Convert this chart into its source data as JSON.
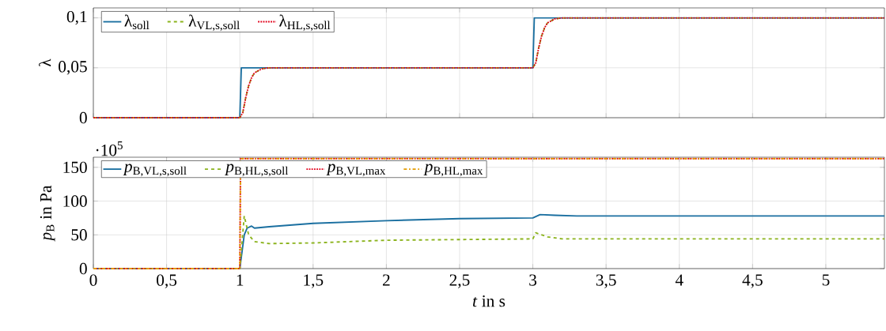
{
  "chart_data": [
    {
      "type": "line",
      "ylabel": "λ",
      "xlim": [
        0,
        5.4
      ],
      "ylim": [
        0,
        0.11
      ],
      "xticks": [
        0,
        0.5,
        1,
        1.5,
        2,
        2.5,
        3,
        3.5,
        4,
        4.5,
        5
      ],
      "yticks": [
        0,
        {
          "value": 0.05,
          "label": "0,05"
        },
        {
          "value": 0.1,
          "label": "0,1"
        }
      ],
      "tick_labels": "y",
      "grid": true,
      "legend": "top left",
      "marker": "none",
      "series": [
        {
          "name": "λ$_{soll}$",
          "color": "#1a6fa0",
          "line_style": "solid",
          "x": [
            0,
            1.0,
            1.01,
            3.0,
            3.01,
            5.4
          ],
          "values": [
            0,
            0,
            0.05,
            0.05,
            0.1,
            0.1
          ]
        },
        {
          "name": "λ$_{VL,s,soll}$",
          "color": "#8bb31d",
          "line_style": "dashed",
          "x": [
            0,
            1.0,
            1.02,
            1.04,
            1.06,
            1.08,
            1.1,
            1.15,
            1.2,
            3.0,
            3.02,
            3.04,
            3.06,
            3.08,
            3.1,
            3.15,
            3.2,
            5.4
          ],
          "values": [
            0,
            0,
            0.005,
            0.02,
            0.032,
            0.04,
            0.045,
            0.049,
            0.05,
            0.05,
            0.055,
            0.07,
            0.082,
            0.09,
            0.095,
            0.099,
            0.1,
            0.1
          ]
        },
        {
          "name": "λ$_{HL,s,soll}$",
          "color": "#e2001a",
          "line_style": "dotted",
          "x": [
            0,
            1.0,
            1.02,
            1.04,
            1.06,
            1.08,
            1.1,
            1.15,
            1.2,
            3.0,
            3.02,
            3.04,
            3.06,
            3.08,
            3.1,
            3.15,
            3.2,
            5.4
          ],
          "values": [
            0,
            0,
            0.005,
            0.02,
            0.032,
            0.04,
            0.045,
            0.049,
            0.05,
            0.05,
            0.055,
            0.07,
            0.082,
            0.09,
            0.095,
            0.099,
            0.1,
            0.1
          ]
        }
      ]
    },
    {
      "type": "line",
      "xlabel": "*t* in s",
      "ylabel": "*p*$_{B}$ in Pa",
      "annotations": [
        "·10$^{5}$"
      ],
      "xlim": [
        0,
        5.4
      ],
      "ylim": [
        0,
        165
      ],
      "xticks": [
        0,
        {
          "value": 0.5,
          "label": "0,5"
        },
        1,
        {
          "value": 1.5,
          "label": "1,5"
        },
        2,
        {
          "value": 2.5,
          "label": "2,5"
        },
        3,
        {
          "value": 3.5,
          "label": "3,5"
        },
        4,
        {
          "value": 4.5,
          "label": "4,5"
        },
        5
      ],
      "yticks": [
        0,
        50,
        100,
        150
      ],
      "grid": true,
      "legend": "top left",
      "marker": "none",
      "series": [
        {
          "name": "*p*$_{B,VL,s,soll}$",
          "color": "#1a6fa0",
          "line_style": "solid",
          "x": [
            0,
            1.0,
            1.03,
            1.05,
            1.08,
            1.1,
            1.2,
            1.5,
            2.0,
            2.5,
            3.0,
            3.05,
            3.15,
            3.3,
            5.4
          ],
          "values": [
            0,
            0,
            50,
            60,
            63,
            60,
            62,
            67,
            71,
            74,
            75,
            80,
            79,
            78,
            78
          ]
        },
        {
          "name": "*p*$_{B,HL,s,soll}$",
          "color": "#8bb31d",
          "line_style": "dashed",
          "x": [
            0,
            1.0,
            1.03,
            1.06,
            1.1,
            1.2,
            1.5,
            2.0,
            2.5,
            3.0,
            3.02,
            3.1,
            3.2,
            5.4
          ],
          "values": [
            0,
            0,
            78,
            50,
            40,
            37,
            38,
            42,
            43,
            44,
            53,
            47,
            44,
            44
          ]
        },
        {
          "name": "*p*$_{B,VL,max}$",
          "color": "#e2001a",
          "line_style": "dotted",
          "x": [
            0,
            1.0,
            1.005,
            5.4
          ],
          "values": [
            0,
            0,
            163,
            163
          ]
        },
        {
          "name": "*p*$_{B,HL,max}$",
          "color": "#e39b00",
          "line_style": "dashdot",
          "x": [
            0,
            1.0,
            1.005,
            5.4
          ],
          "values": [
            0,
            0,
            163,
            163
          ]
        }
      ]
    }
  ]
}
